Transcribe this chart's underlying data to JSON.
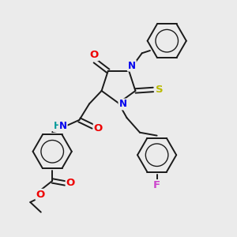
{
  "bg_color": "#ebebeb",
  "bond_color": "#1a1a1a",
  "bond_width": 1.4,
  "atom_colors": {
    "N": "#0000ee",
    "O": "#ee0000",
    "S": "#bbbb00",
    "F": "#cc44cc",
    "H": "#009999",
    "C": "#1a1a1a"
  },
  "font_size": 8.5,
  "fig_size": [
    3.0,
    3.0
  ],
  "dpi": 100
}
